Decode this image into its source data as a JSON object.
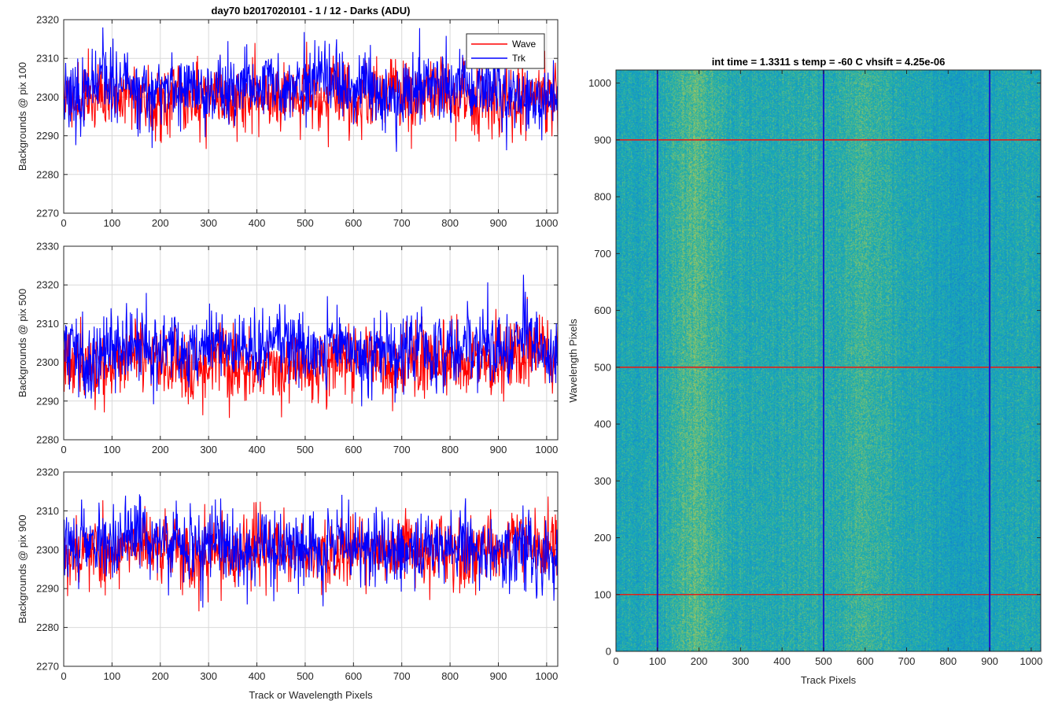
{
  "figure": {
    "title": "day70 b2017020101 - 1 / 12 - Darks (ADU)"
  },
  "colors": {
    "wave": "#ff0000",
    "trk": "#0000ff",
    "grid": "#d9d9d9",
    "axis": "#262626",
    "marker_h": "#e0201a",
    "marker_v": "#1a1acc"
  },
  "chart_data": [
    {
      "type": "line",
      "ylabel": "Backgrounds @ pix 100",
      "xlabel": "",
      "xlim": [
        0,
        1023
      ],
      "ylim": [
        2270,
        2320
      ],
      "xticks": [
        0,
        100,
        200,
        300,
        400,
        500,
        600,
        700,
        800,
        900,
        1000
      ],
      "yticks": [
        2270,
        2280,
        2290,
        2300,
        2310,
        2320
      ],
      "grid": true,
      "legend": {
        "placement": "top-right",
        "entries": [
          "Wave",
          "Trk"
        ]
      },
      "series": [
        {
          "name": "Wave",
          "mean": 2300,
          "amp": 4.5,
          "min": 2277,
          "max": 2315,
          "seed": 11
        },
        {
          "name": "Trk",
          "mean": 2301.5,
          "amp": 4.5,
          "min": 2281,
          "max": 2318,
          "seed": 23
        }
      ]
    },
    {
      "type": "line",
      "ylabel": "Backgrounds @ pix 500",
      "xlabel": "",
      "xlim": [
        0,
        1023
      ],
      "ylim": [
        2280,
        2330
      ],
      "xticks": [
        0,
        100,
        200,
        300,
        400,
        500,
        600,
        700,
        800,
        900,
        1000
      ],
      "yticks": [
        2280,
        2290,
        2300,
        2310,
        2320,
        2330
      ],
      "grid": true,
      "series": [
        {
          "name": "Wave",
          "mean": 2300,
          "amp": 4.5,
          "min": 2282,
          "max": 2322,
          "seed": 37
        },
        {
          "name": "Trk",
          "mean": 2303.5,
          "amp": 4.8,
          "min": 2285,
          "max": 2324,
          "seed": 41
        }
      ]
    },
    {
      "type": "line",
      "ylabel": "Backgrounds @ pix 900",
      "xlabel": "Track or Wavelength Pixels",
      "xlim": [
        0,
        1023
      ],
      "ylim": [
        2270,
        2320
      ],
      "xticks": [
        0,
        100,
        200,
        300,
        400,
        500,
        600,
        700,
        800,
        900,
        1000
      ],
      "yticks": [
        2270,
        2280,
        2290,
        2300,
        2310,
        2320
      ],
      "grid": true,
      "series": [
        {
          "name": "Wave",
          "mean": 2300,
          "amp": 4.6,
          "min": 2276,
          "max": 2320,
          "seed": 53
        },
        {
          "name": "Trk",
          "mean": 2300.5,
          "amp": 4.6,
          "min": 2279,
          "max": 2320,
          "seed": 67
        }
      ]
    },
    {
      "type": "heatmap",
      "title": "int time = 1.3311 s    temp = -60 C    vhsift = 4.25e-06",
      "xlabel": "Track Pixels",
      "ylabel": "Wavelength Pixels",
      "xlim": [
        0,
        1023
      ],
      "ylim": [
        0,
        1023
      ],
      "xticks": [
        0,
        100,
        200,
        300,
        400,
        500,
        600,
        700,
        800,
        900,
        1000
      ],
      "yticks": [
        0,
        100,
        200,
        300,
        400,
        500,
        600,
        700,
        800,
        900,
        1000
      ],
      "colormap": "parula",
      "vertical_markers": [
        100,
        500,
        900
      ],
      "horizontal_markers": [
        100,
        500,
        900
      ]
    }
  ]
}
